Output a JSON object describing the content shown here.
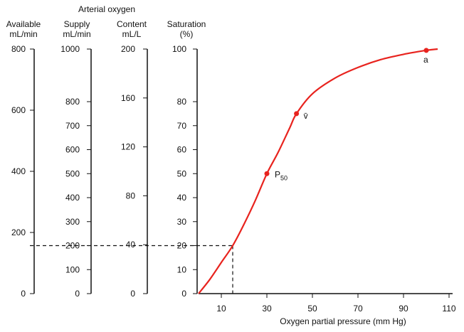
{
  "chart_data": {
    "type": "line",
    "group_header": "Arterial oxygen",
    "xlabel": "Oxygen partial pressure (mm Hg)",
    "x_ticks": [
      10,
      30,
      50,
      70,
      90,
      110
    ],
    "xlim": [
      0,
      110
    ],
    "axes": [
      {
        "id": "available",
        "title": [
          "Available",
          "mL/min"
        ],
        "ticks": [
          0,
          200,
          400,
          600,
          800
        ]
      },
      {
        "id": "supply",
        "title": [
          "Supply",
          "mL/min"
        ],
        "ticks": [
          0,
          100,
          200,
          300,
          400,
          500,
          600,
          700,
          800,
          1000
        ]
      },
      {
        "id": "content",
        "title": [
          "Content",
          "mL/L"
        ],
        "ticks": [
          0,
          40,
          80,
          120,
          160,
          200
        ]
      },
      {
        "id": "saturation",
        "title": [
          "Saturation",
          "(%)"
        ],
        "ticks": [
          0,
          10,
          20,
          30,
          40,
          50,
          60,
          70,
          80,
          100
        ]
      }
    ],
    "series": [
      {
        "color": "#e8231e",
        "x": [
          0,
          5,
          10,
          15,
          20,
          25,
          30,
          35,
          40,
          43,
          50,
          60,
          70,
          80,
          90,
          100,
          105
        ],
        "y": [
          0,
          6,
          13,
          20,
          29,
          39,
          50,
          59,
          69,
          75,
          83,
          89,
          93,
          96,
          98,
          99.5,
          100
        ]
      }
    ],
    "points": [
      {
        "label": "P50",
        "x": 30,
        "y": 50
      },
      {
        "label": "v̄",
        "x": 43,
        "y": 75
      },
      {
        "label": "a",
        "x": 100,
        "y": 99.5
      }
    ],
    "dashed_reference": {
      "x": 15,
      "y": 20
    }
  }
}
